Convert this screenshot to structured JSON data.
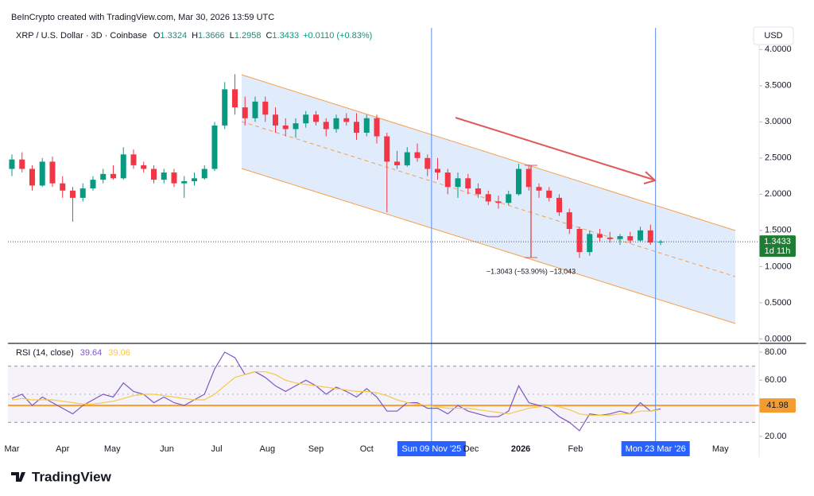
{
  "header": {
    "credit": "BeInCrypto created with TradingView.com, Mar 30, 2026 13:59 UTC"
  },
  "annotation": "−1.3043 (−53.90%) −13,043",
  "footer": {
    "brand": "TradingView"
  },
  "chart_data": [
    {
      "type": "candlestick",
      "title": "XRP / U.S. Dollar · 3D · Coinbase",
      "ohlc_labels": [
        "O",
        "H",
        "L",
        "C"
      ],
      "change": "+0.0110 (+0.83%)",
      "currency": "USD",
      "countdown": "1d 11h",
      "up_color": "#089981",
      "down_color": "#f23645",
      "open": [
        2.35,
        2.48,
        2.35,
        2.12,
        2.45,
        2.15,
        2.05,
        1.95,
        2.08,
        2.2,
        2.28,
        2.22,
        2.55,
        2.4,
        2.35,
        2.2,
        2.3,
        2.15,
        2.18,
        2.22,
        2.35,
        2.95,
        3.45,
        3.2,
        3.05,
        3.28,
        3.1,
        2.95,
        2.9,
        2.98,
        3.1,
        3.0,
        2.9,
        3.05,
        3.0,
        2.85,
        3.05,
        2.8,
        2.45,
        2.4,
        2.58,
        2.5,
        2.35,
        2.3,
        2.1,
        2.22,
        2.08,
        2.0,
        1.9,
        1.88,
        2.0,
        2.35,
        2.1,
        2.05,
        1.95,
        1.75,
        1.52,
        1.2,
        1.45,
        1.4,
        1.38,
        1.42,
        1.36,
        1.5,
        1.3324
      ],
      "high": [
        2.55,
        2.58,
        2.4,
        2.5,
        2.52,
        2.25,
        2.1,
        2.15,
        2.25,
        2.35,
        2.4,
        2.65,
        2.62,
        2.45,
        2.4,
        2.35,
        2.35,
        2.25,
        2.3,
        2.4,
        3.0,
        3.55,
        3.66,
        3.35,
        3.35,
        3.35,
        3.2,
        3.05,
        3.05,
        3.15,
        3.15,
        3.05,
        3.1,
        3.12,
        3.12,
        3.1,
        3.1,
        2.85,
        2.6,
        2.65,
        2.7,
        2.55,
        2.5,
        2.35,
        2.3,
        2.28,
        2.15,
        2.05,
        1.98,
        2.05,
        2.42,
        2.41,
        2.15,
        2.1,
        2.0,
        1.8,
        1.55,
        1.5,
        1.52,
        1.48,
        1.45,
        1.48,
        1.55,
        1.58,
        1.3666
      ],
      "low": [
        2.25,
        2.3,
        2.05,
        2.1,
        2.1,
        1.95,
        1.62,
        1.9,
        2.05,
        2.15,
        2.2,
        2.2,
        2.35,
        2.3,
        2.15,
        2.15,
        2.1,
        1.95,
        2.12,
        2.2,
        2.32,
        2.9,
        3.1,
        2.95,
        3.0,
        3.0,
        2.85,
        2.8,
        2.78,
        2.92,
        2.95,
        2.8,
        2.85,
        2.95,
        2.75,
        2.8,
        2.7,
        1.75,
        2.35,
        2.38,
        2.45,
        2.25,
        2.2,
        2.0,
        1.95,
        2.0,
        1.95,
        1.85,
        1.8,
        1.85,
        1.98,
        2.05,
        1.95,
        1.9,
        1.7,
        1.45,
        1.12,
        1.15,
        1.35,
        1.33,
        1.3,
        1.32,
        1.34,
        1.3,
        1.2958
      ],
      "close": [
        2.48,
        2.35,
        2.12,
        2.45,
        2.15,
        2.05,
        1.95,
        2.08,
        2.2,
        2.28,
        2.22,
        2.55,
        2.4,
        2.35,
        2.2,
        2.3,
        2.15,
        2.18,
        2.22,
        2.35,
        2.95,
        3.45,
        3.2,
        3.05,
        3.28,
        3.1,
        2.95,
        2.9,
        2.98,
        3.1,
        3.0,
        2.9,
        3.05,
        3.0,
        2.85,
        3.05,
        2.8,
        2.45,
        2.4,
        2.58,
        2.5,
        2.35,
        2.3,
        2.1,
        2.22,
        2.08,
        2.0,
        1.9,
        1.88,
        2.0,
        2.35,
        2.1,
        2.05,
        1.95,
        1.75,
        1.52,
        1.2,
        1.45,
        1.4,
        1.38,
        1.42,
        1.36,
        1.5,
        1.3323,
        1.3433
      ],
      "xlim": [
        -0.39,
        73.33
      ],
      "ylim": [
        -0.04,
        4.3
      ],
      "yticks": [
        {
          "value": 0,
          "label": "0.0000"
        },
        {
          "value": 0.5,
          "label": "0.5000"
        },
        {
          "value": 1,
          "label": "1.0000"
        },
        {
          "value": 1.5,
          "label": "1.5000"
        },
        {
          "value": 2,
          "label": "2.0000"
        },
        {
          "value": 2.5,
          "label": "2.5000"
        },
        {
          "value": 3,
          "label": "3.0000"
        },
        {
          "value": 3.5,
          "label": "3.5000"
        },
        {
          "value": 4,
          "label": "4.0000"
        }
      ]
    },
    {
      "type": "line",
      "title": "RSI (14, close)",
      "series": [
        {
          "color": "#7e57c2",
          "values": [
            47,
            50,
            42,
            48,
            44,
            40,
            36,
            42,
            46,
            50,
            48,
            58,
            52,
            50,
            44,
            48,
            44,
            42,
            46,
            50,
            68,
            80,
            76,
            64,
            66,
            62,
            56,
            52,
            56,
            60,
            56,
            50,
            55,
            52,
            48,
            54,
            48,
            38,
            38,
            44,
            44,
            40,
            40,
            36,
            42,
            38,
            36,
            34,
            34,
            38,
            56,
            44,
            42,
            40,
            34,
            30,
            24,
            36,
            35,
            36,
            38,
            36,
            44,
            38,
            39.64
          ]
        },
        {
          "color": "#f7c948",
          "values": [
            46,
            47,
            46,
            46,
            46,
            45,
            44,
            43,
            43,
            44,
            45,
            47,
            49,
            50,
            50,
            49,
            48,
            47,
            46,
            46,
            50,
            56,
            62,
            64,
            66,
            66,
            64,
            60,
            58,
            57,
            56,
            55,
            54,
            53,
            52,
            52,
            51,
            49,
            46,
            44,
            43,
            42,
            41,
            40,
            40,
            40,
            39,
            38,
            37,
            36,
            38,
            40,
            41,
            42,
            41,
            39,
            36,
            35,
            35,
            35,
            36,
            36,
            38,
            38,
            39.06
          ]
        }
      ],
      "band": [
        30,
        70
      ],
      "midline": 50,
      "band_color": "#7e57c2",
      "hline": {
        "value": 41.98,
        "color": "#f39c32"
      },
      "xlim": [
        -0.39,
        73.33
      ],
      "ylim": [
        16.6,
        84.5
      ],
      "yticks": [
        {
          "value": 20,
          "label": "20.00"
        },
        {
          "value": 60,
          "label": "60.00"
        },
        {
          "value": 80,
          "label": "80.00"
        }
      ],
      "xticks": [
        {
          "value": 0,
          "label": "Mar"
        },
        {
          "value": 5.0,
          "label": "Apr"
        },
        {
          "value": 9.9,
          "label": "May"
        },
        {
          "value": 15.3,
          "label": "Jun"
        },
        {
          "value": 20.2,
          "label": "Jul"
        },
        {
          "value": 25.2,
          "label": "Aug"
        },
        {
          "value": 30.0,
          "label": "Sep"
        },
        {
          "value": 35.0,
          "label": "Oct"
        },
        {
          "value": 41.4,
          "label": "Sun 09 Nov '25",
          "highlighted": true
        },
        {
          "value": 45.3,
          "label": "Dec"
        },
        {
          "value": 50.2,
          "label": "2026"
        },
        {
          "value": 55.6,
          "label": "Feb"
        },
        {
          "value": 63.5,
          "label": "Mon 23 Mar '26",
          "highlighted": true
        },
        {
          "value": 69.9,
          "label": "May"
        }
      ]
    }
  ]
}
